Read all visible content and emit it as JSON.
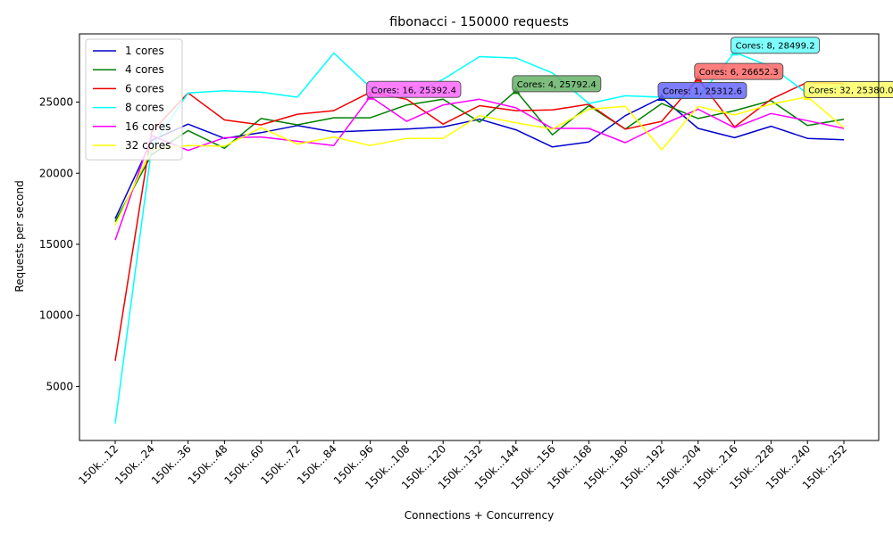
{
  "chart_data": {
    "type": "line",
    "title": "fibonacci - 150000 requests",
    "xlabel": "Connections + Concurrency",
    "ylabel": "Requests per second",
    "categories": [
      "150k...12",
      "150k...24",
      "150k...36",
      "150k...48",
      "150k...60",
      "150k...72",
      "150k...84",
      "150k...96",
      "150k...108",
      "150k...120",
      "150k...132",
      "150k...144",
      "150k...156",
      "150k...168",
      "150k...180",
      "150k...192",
      "150k...204",
      "150k...216",
      "150k...228",
      "150k...240",
      "150k...252"
    ],
    "ylim": [
      1200,
      29800
    ],
    "yticks": [
      5000,
      10000,
      15000,
      20000,
      25000
    ],
    "legend_position": "top-left",
    "grid": false,
    "series": [
      {
        "name": "1 cores",
        "color": "#0000cc",
        "values": [
          16800,
          22300,
          23450,
          22450,
          22850,
          23350,
          22900,
          23000,
          23100,
          23250,
          23800,
          23050,
          21850,
          22200,
          24050,
          25312.6,
          23150,
          22500,
          23300,
          22450,
          22350
        ]
      },
      {
        "name": "4 cores",
        "color": "#008000",
        "values": [
          16600,
          21300,
          23000,
          21750,
          23850,
          23400,
          23900,
          23900,
          24800,
          25200,
          23600,
          25792.4,
          22700,
          24750,
          23100,
          24900,
          23850,
          24400,
          25100,
          23350,
          23800
        ]
      },
      {
        "name": "6 cores",
        "color": "#ee0000",
        "values": [
          6800,
          22900,
          25650,
          23750,
          23400,
          24150,
          24400,
          25700,
          25200,
          23450,
          24750,
          24400,
          24450,
          24850,
          23100,
          23650,
          26652.3,
          23250,
          25200,
          26400,
          26300
        ]
      },
      {
        "name": "8 cores",
        "color": "#00ffff",
        "values": [
          2400,
          21800,
          25650,
          25800,
          25700,
          25350,
          28450,
          26050,
          25400,
          26600,
          28200,
          28100,
          27050,
          24900,
          25450,
          25350,
          25300,
          28499.2,
          27500,
          25600,
          26150
        ]
      },
      {
        "name": "16 cores",
        "color": "#ff00ff",
        "values": [
          15300,
          22650,
          21600,
          22500,
          22550,
          22250,
          21950,
          25392.4,
          23650,
          24800,
          25200,
          24600,
          23150,
          23150,
          22150,
          23400,
          24500,
          23200,
          24200,
          23700,
          23150
        ]
      },
      {
        "name": "32 cores",
        "color": "#ffff00",
        "values": [
          16350,
          21700,
          21950,
          21900,
          23200,
          22050,
          22550,
          21950,
          22450,
          22450,
          24050,
          23550,
          23100,
          24500,
          24700,
          21650,
          24700,
          24100,
          24850,
          25380.0,
          23200
        ]
      }
    ],
    "annotations": [
      {
        "text": "Cores: 16, 25392.4",
        "series": 4,
        "index": 7,
        "color": "#ff66ff"
      },
      {
        "text": "Cores: 4, 25792.4",
        "series": 1,
        "index": 11,
        "color": "#66b266"
      },
      {
        "text": "Cores: 1, 25312.6",
        "series": 0,
        "index": 15,
        "color": "#6666ff"
      },
      {
        "text": "Cores: 6, 26652.3",
        "series": 2,
        "index": 16,
        "color": "#ff6666"
      },
      {
        "text": "Cores: 8, 28499.2",
        "series": 3,
        "index": 17,
        "color": "#66ffff"
      },
      {
        "text": "Cores: 32, 25380.0",
        "series": 5,
        "index": 19,
        "color": "#ffff66"
      }
    ]
  }
}
